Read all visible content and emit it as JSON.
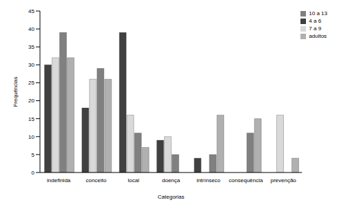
{
  "chart_data": {
    "type": "bar",
    "categories": [
      "indefinida",
      "conceito",
      "local",
      "doença",
      "intrínseco",
      "consequência",
      "prevenção"
    ],
    "series": [
      {
        "name": "4 a 6",
        "color": "#404040",
        "values": [
          30,
          18,
          39,
          9,
          4,
          0,
          0
        ]
      },
      {
        "name": "7 a 9",
        "color": "#d9d9d9",
        "values": [
          32,
          26,
          16,
          10,
          0,
          0,
          16
        ]
      },
      {
        "name": "10 a 13",
        "color": "#808080",
        "values": [
          39,
          29,
          11,
          5,
          5,
          11,
          0
        ]
      },
      {
        "name": "adultos",
        "color": "#b0b0b0",
        "values": [
          32,
          26,
          7,
          0,
          16,
          15,
          4
        ]
      }
    ],
    "x_label": "Categorias",
    "y_label": "Frequências",
    "ylim": [
      0,
      45
    ],
    "yticks": [
      0,
      5,
      10,
      15,
      20,
      25,
      30,
      35,
      40,
      45
    ],
    "legend": "top-right",
    "grid": false
  }
}
